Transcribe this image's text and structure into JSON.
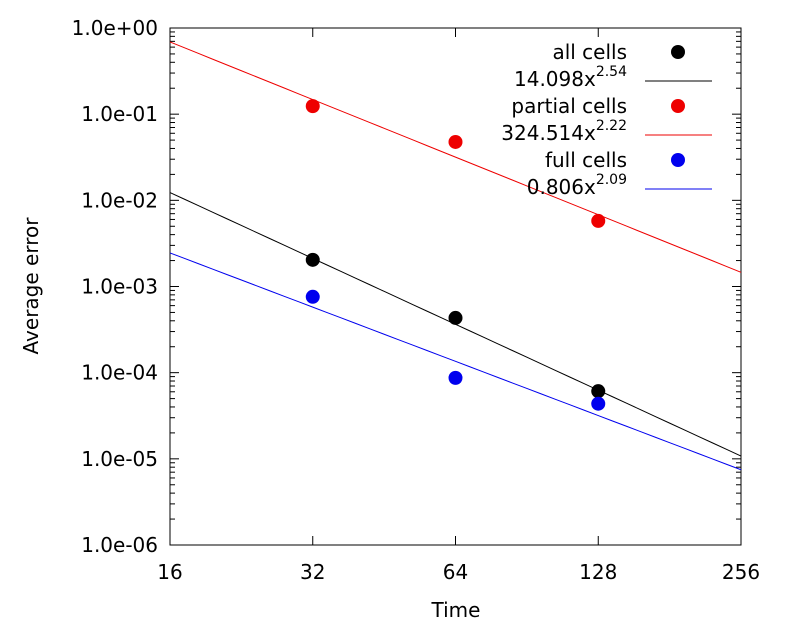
{
  "chart_data": {
    "type": "scatter",
    "xlabel": "Time",
    "ylabel": "Average error",
    "log_x": true,
    "log_y": true,
    "x": [
      32,
      64,
      128
    ],
    "xlim": [
      16,
      256
    ],
    "xticks": [
      16,
      32,
      64,
      128,
      256
    ],
    "ylim": [
      1e-06,
      1
    ],
    "yticks": [
      {
        "value": 1e-06,
        "label": "1.0e-06"
      },
      {
        "value": 1e-05,
        "label": "1.0e-05"
      },
      {
        "value": 0.0001,
        "label": "1.0e-04"
      },
      {
        "value": 0.001,
        "label": "1.0e-03"
      },
      {
        "value": 0.01,
        "label": "1.0e-02"
      },
      {
        "value": 0.1,
        "label": "1.0e-01"
      },
      {
        "value": 1,
        "label": "1.0e+00"
      }
    ],
    "legend": "top-right",
    "series": [
      {
        "name": "all cells",
        "color": "#000000",
        "values": [
          0.00204,
          0.000432,
          6.1e-05
        ],
        "fit": {
          "name": "14.098x",
          "superscript": "2.54",
          "coefficient": 14.098,
          "exponent": 2.54
        }
      },
      {
        "name": "partial cells",
        "color": "#ee0000",
        "values": [
          0.124,
          0.0476,
          0.00577
        ],
        "fit": {
          "name": "324.514x",
          "superscript": "2.22",
          "coefficient": 324.514,
          "exponent": 2.22
        }
      },
      {
        "name": "full cells",
        "color": "#0000ee",
        "values": [
          0.00076,
          8.7e-05,
          4.36e-05
        ],
        "fit": {
          "name": "0.806x",
          "superscript": "2.09",
          "coefficient": 0.806,
          "exponent": 2.09
        }
      }
    ]
  }
}
